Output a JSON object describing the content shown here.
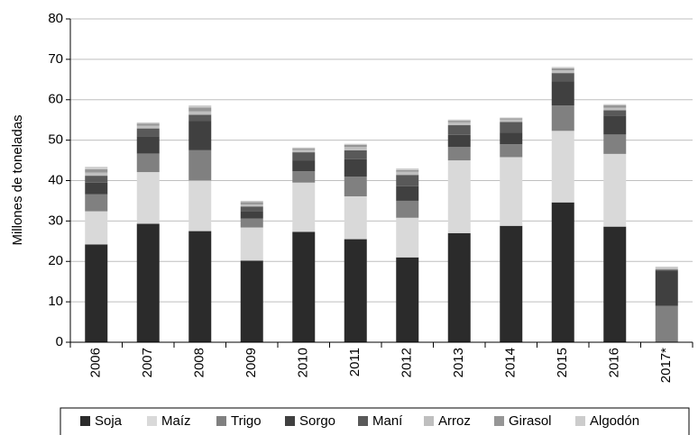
{
  "chart_data": {
    "type": "stacked_bar",
    "y_label": "Millones de toneladas",
    "categories": [
      "2006",
      "2007",
      "2008",
      "2009",
      "2010",
      "2011",
      "2012",
      "2013",
      "2014",
      "2015",
      "2016",
      "2017*"
    ],
    "series": [
      {
        "name": "Soja",
        "color": "#2b2b2b",
        "values": [
          24.2,
          29.3,
          27.5,
          20.2,
          27.3,
          25.5,
          21.0,
          27.0,
          28.8,
          34.6,
          28.6,
          0
        ]
      },
      {
        "name": "Maíz",
        "color": "#d9d9d9",
        "values": [
          8.2,
          12.8,
          12.5,
          8.2,
          12.2,
          10.6,
          9.8,
          18.0,
          17.0,
          17.7,
          18.0,
          0
        ]
      },
      {
        "name": "Trigo",
        "color": "#808080",
        "values": [
          4.2,
          4.6,
          7.5,
          2.2,
          2.8,
          4.9,
          4.2,
          3.3,
          3.2,
          6.3,
          4.8,
          9.0
        ]
      },
      {
        "name": "Sorgo",
        "color": "#404040",
        "values": [
          2.9,
          4.2,
          7.3,
          1.8,
          2.7,
          4.3,
          3.6,
          3.0,
          2.9,
          6.0,
          4.7,
          8.6
        ]
      },
      {
        "name": "Maní",
        "color": "#595959",
        "values": [
          1.7,
          2.0,
          1.5,
          1.2,
          2.0,
          2.2,
          2.8,
          2.4,
          2.6,
          2.0,
          1.3,
          0.4
        ]
      },
      {
        "name": "Arroz",
        "color": "#bfbfbf",
        "values": [
          0.8,
          0.7,
          0.8,
          0.5,
          0.6,
          0.8,
          0.8,
          0.7,
          0.6,
          0.7,
          0.6,
          0.4
        ]
      },
      {
        "name": "Girasol",
        "color": "#969696",
        "values": [
          0.8,
          0.5,
          1.0,
          0.6,
          0.3,
          0.5,
          0.4,
          0.4,
          0.3,
          0.5,
          0.6,
          0
        ]
      },
      {
        "name": "Algodón",
        "color": "#cccccc",
        "values": [
          0.6,
          0.3,
          0.5,
          0.3,
          0.3,
          0.3,
          0.4,
          0.3,
          0.2,
          0.3,
          0.3,
          0.3
        ]
      }
    ],
    "ylim": [
      0,
      80
    ],
    "yticks": [
      0,
      10,
      20,
      30,
      40,
      50,
      60,
      70,
      80
    ],
    "grid": true,
    "legend": "bottom"
  }
}
